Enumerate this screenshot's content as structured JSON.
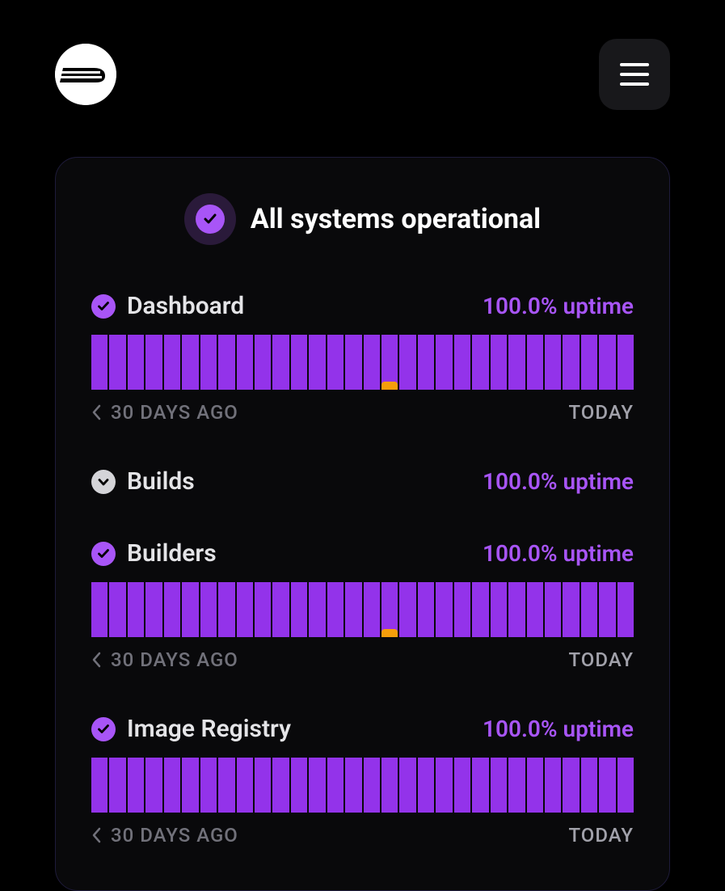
{
  "colors": {
    "background": "#000000",
    "panel_bg": "#09090b",
    "panel_border": "#1e1b3a",
    "accent": "#a855f7",
    "bar_fill": "#9333ea",
    "incident": "#f59e0b",
    "text_primary": "#ffffff",
    "text_secondary": "#e4e4e7",
    "text_muted": "#71717a",
    "menu_bg": "#18181b"
  },
  "status": {
    "icon": "check",
    "title": "All systems operational"
  },
  "timeline": {
    "start_label": "30 DAYS AGO",
    "end_label": "TODAY",
    "days": 30
  },
  "services": [
    {
      "name": "Dashboard",
      "uptime": "100.0% uptime",
      "icon": "check",
      "show_bars": true,
      "bars": [
        {
          "ok": true
        },
        {
          "ok": true
        },
        {
          "ok": true
        },
        {
          "ok": true
        },
        {
          "ok": true
        },
        {
          "ok": true
        },
        {
          "ok": true
        },
        {
          "ok": true
        },
        {
          "ok": true
        },
        {
          "ok": true
        },
        {
          "ok": true
        },
        {
          "ok": true
        },
        {
          "ok": true
        },
        {
          "ok": true
        },
        {
          "ok": true
        },
        {
          "ok": true
        },
        {
          "ok": true,
          "incident_height": 10
        },
        {
          "ok": true
        },
        {
          "ok": true
        },
        {
          "ok": true
        },
        {
          "ok": true
        },
        {
          "ok": true
        },
        {
          "ok": true
        },
        {
          "ok": true
        },
        {
          "ok": true
        },
        {
          "ok": true
        },
        {
          "ok": true
        },
        {
          "ok": true
        },
        {
          "ok": true
        },
        {
          "ok": true
        }
      ]
    },
    {
      "name": "Builds",
      "uptime": "100.0% uptime",
      "icon": "chevron",
      "show_bars": false
    },
    {
      "name": "Builders",
      "uptime": "100.0% uptime",
      "icon": "check",
      "show_bars": true,
      "bars": [
        {
          "ok": true
        },
        {
          "ok": true
        },
        {
          "ok": true
        },
        {
          "ok": true
        },
        {
          "ok": true
        },
        {
          "ok": true
        },
        {
          "ok": true
        },
        {
          "ok": true
        },
        {
          "ok": true
        },
        {
          "ok": true
        },
        {
          "ok": true
        },
        {
          "ok": true
        },
        {
          "ok": true
        },
        {
          "ok": true
        },
        {
          "ok": true
        },
        {
          "ok": true
        },
        {
          "ok": true,
          "incident_height": 10
        },
        {
          "ok": true
        },
        {
          "ok": true
        },
        {
          "ok": true
        },
        {
          "ok": true
        },
        {
          "ok": true
        },
        {
          "ok": true
        },
        {
          "ok": true
        },
        {
          "ok": true
        },
        {
          "ok": true
        },
        {
          "ok": true
        },
        {
          "ok": true
        },
        {
          "ok": true
        },
        {
          "ok": true
        }
      ]
    },
    {
      "name": "Image Registry",
      "uptime": "100.0% uptime",
      "icon": "check",
      "show_bars": true,
      "bars": [
        {
          "ok": true
        },
        {
          "ok": true
        },
        {
          "ok": true
        },
        {
          "ok": true
        },
        {
          "ok": true
        },
        {
          "ok": true
        },
        {
          "ok": true
        },
        {
          "ok": true
        },
        {
          "ok": true
        },
        {
          "ok": true
        },
        {
          "ok": true
        },
        {
          "ok": true
        },
        {
          "ok": true
        },
        {
          "ok": true
        },
        {
          "ok": true
        },
        {
          "ok": true
        },
        {
          "ok": true
        },
        {
          "ok": true
        },
        {
          "ok": true
        },
        {
          "ok": true
        },
        {
          "ok": true
        },
        {
          "ok": true
        },
        {
          "ok": true
        },
        {
          "ok": true
        },
        {
          "ok": true
        },
        {
          "ok": true
        },
        {
          "ok": true
        },
        {
          "ok": true
        },
        {
          "ok": true
        },
        {
          "ok": true
        }
      ]
    }
  ]
}
